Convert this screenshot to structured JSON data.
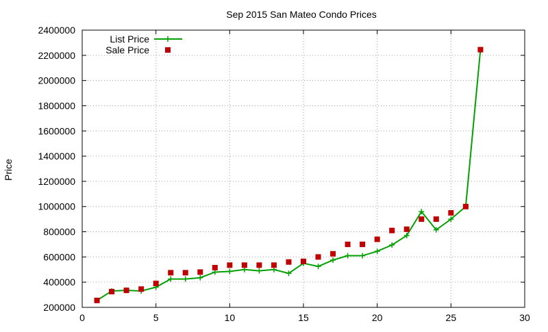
{
  "chart_data": {
    "type": "line",
    "title": "Sep 2015 San Mateo Condo Prices",
    "xlabel": "",
    "ylabel": "Price",
    "xlim": [
      0,
      30
    ],
    "ylim": [
      200000,
      2400000
    ],
    "x_ticks": [
      0,
      5,
      10,
      15,
      20,
      25,
      30
    ],
    "y_ticks": [
      200000,
      400000,
      600000,
      800000,
      1000000,
      1200000,
      1400000,
      1600000,
      1800000,
      2000000,
      2200000,
      2400000
    ],
    "x_tick_labels": [
      "0",
      "5",
      "10",
      "15",
      "20",
      "25",
      "30"
    ],
    "y_tick_labels": [
      "200000",
      "400000",
      "600000",
      "800000",
      "1000000",
      "1200000",
      "1400000",
      "1600000",
      "1800000",
      "2000000",
      "2200000",
      "2400000"
    ],
    "grid": true,
    "legend_position": "top-left",
    "x": [
      1,
      2,
      3,
      4,
      5,
      6,
      7,
      8,
      9,
      10,
      11,
      12,
      13,
      14,
      15,
      16,
      17,
      18,
      19,
      20,
      21,
      22,
      23,
      24,
      25,
      26,
      27
    ],
    "series": [
      {
        "name": "List Price",
        "style": "line-with-plus-markers",
        "color": "#00a000",
        "values": [
          255000,
          330000,
          335000,
          330000,
          360000,
          425000,
          425000,
          435000,
          480000,
          485000,
          500000,
          490000,
          500000,
          470000,
          550000,
          525000,
          575000,
          610000,
          610000,
          645000,
          695000,
          770000,
          960000,
          815000,
          900000,
          1000000,
          2245000
        ]
      },
      {
        "name": "Sale Price",
        "style": "square-markers",
        "color": "#c00000",
        "values": [
          255000,
          325000,
          335000,
          345000,
          390000,
          475000,
          475000,
          480000,
          515000,
          535000,
          535000,
          535000,
          535000,
          560000,
          565000,
          600000,
          625000,
          700000,
          700000,
          740000,
          810000,
          820000,
          900000,
          900000,
          950000,
          1000000,
          2245000
        ]
      }
    ]
  }
}
